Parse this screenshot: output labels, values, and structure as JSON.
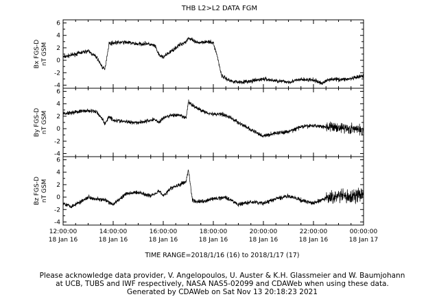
{
  "chart_data": {
    "type": "line",
    "title": "THB  L2>L2 DATA  FGM",
    "time_range_label": "TIME RANGE=2018/1/16 (16) to 2018/1/17 (17)",
    "x_ticks": [
      {
        "time": "12:00:00",
        "date": "18 Jan 16"
      },
      {
        "time": "14:00:00",
        "date": "18 Jan 16"
      },
      {
        "time": "16:00:00",
        "date": "18 Jan 16"
      },
      {
        "time": "18:00:00",
        "date": "18 Jan 16"
      },
      {
        "time": "20:00:00",
        "date": "18 Jan 16"
      },
      {
        "time": "22:00:00",
        "date": "18 Jan 16"
      },
      {
        "time": "00:00:00",
        "date": "18 Jan 17"
      }
    ],
    "xlim": [
      "2018-01-16 12:00",
      "2018-01-17 00:00"
    ],
    "panels": [
      {
        "ylabel": "Bx FGS-D",
        "unit": "nT GSM",
        "ylim": [
          -4.5,
          6.5
        ],
        "y_ticks": [
          "6",
          "4",
          "2",
          "0",
          "-2",
          "-4"
        ],
        "y_tick_values": [
          6,
          4,
          2,
          0,
          -2,
          -4
        ],
        "series": [
          {
            "x": [
              "12:00",
              "12:30",
              "13:00",
              "13:20",
              "13:35",
              "13:40",
              "13:50",
              "14:00",
              "14:30",
              "15:00",
              "15:20",
              "15:40",
              "15:50",
              "16:00",
              "16:20",
              "16:40",
              "16:55",
              "17:00",
              "17:20",
              "17:40",
              "18:00",
              "18:10",
              "18:20",
              "18:40",
              "19:00",
              "19:30",
              "20:00",
              "20:30",
              "21:00",
              "21:30",
              "22:00",
              "22:20",
              "22:40",
              "23:00",
              "23:30",
              "00:00"
            ],
            "y": [
              0.5,
              1.0,
              1.5,
              0.5,
              -1.2,
              -1.5,
              2.7,
              2.8,
              2.9,
              2.6,
              2.7,
              2.3,
              0.8,
              0.5,
              1.5,
              2.5,
              3.0,
              3.6,
              2.8,
              3.0,
              2.8,
              0.5,
              -2.5,
              -3.3,
              -3.5,
              -3.4,
              -3.0,
              -3.3,
              -3.5,
              -3.1,
              -3.2,
              -3.7,
              -3.0,
              -3.1,
              -3.0,
              -2.5
            ]
          }
        ]
      },
      {
        "ylabel": "By FGS-D",
        "unit": "nT GSM",
        "ylim": [
          -4.5,
          6.5
        ],
        "y_ticks": [
          "6",
          "4",
          "2",
          "0",
          "-2",
          "-4"
        ],
        "y_tick_values": [
          6,
          4,
          2,
          0,
          -2,
          -4
        ],
        "series": [
          {
            "x": [
              "12:00",
              "12:30",
              "13:00",
              "13:20",
              "13:35",
              "13:40",
              "13:50",
              "14:00",
              "14:30",
              "15:00",
              "15:20",
              "15:40",
              "15:50",
              "16:00",
              "16:20",
              "16:40",
              "16:55",
              "17:00",
              "17:20",
              "17:40",
              "18:00",
              "18:20",
              "18:40",
              "19:00",
              "19:30",
              "20:00",
              "20:30",
              "21:00",
              "21:30",
              "22:00",
              "22:30",
              "23:00",
              "23:30",
              "00:00"
            ],
            "y": [
              2.4,
              2.7,
              2.9,
              2.7,
              1.5,
              0.7,
              2.0,
              1.4,
              1.1,
              1.0,
              1.2,
              1.5,
              1.0,
              1.7,
              2.2,
              2.1,
              1.7,
              4.3,
              3.3,
              2.7,
              2.3,
              2.4,
              1.8,
              1.0,
              -0.2,
              -1.2,
              -0.7,
              -0.5,
              0.3,
              0.5,
              0.3,
              0.2,
              0.0,
              -0.3
            ]
          }
        ]
      },
      {
        "ylabel": "Bz FGS-D",
        "unit": "nT GSM",
        "ylim": [
          -4.5,
          6.5
        ],
        "y_ticks": [
          "6",
          "4",
          "2",
          "0",
          "-2",
          "-4"
        ],
        "y_tick_values": [
          6,
          4,
          2,
          0,
          -2,
          -4
        ],
        "series": [
          {
            "x": [
              "12:00",
              "12:20",
              "12:40",
              "13:00",
              "13:20",
              "13:40",
              "14:00",
              "14:30",
              "15:00",
              "15:30",
              "15:50",
              "16:00",
              "16:20",
              "16:40",
              "16:55",
              "17:00",
              "17:10",
              "17:20",
              "17:40",
              "18:00",
              "18:30",
              "19:00",
              "19:30",
              "20:00",
              "20:30",
              "21:00",
              "21:30",
              "22:00",
              "22:30",
              "23:00",
              "23:30",
              "00:00"
            ],
            "y": [
              -1.0,
              -1.5,
              -0.8,
              0.0,
              -0.3,
              -0.5,
              -1.2,
              0.5,
              0.8,
              0.2,
              1.0,
              0.2,
              1.5,
              2.0,
              2.5,
              4.5,
              -0.5,
              -0.8,
              -0.6,
              -0.3,
              0.0,
              -1.2,
              -0.8,
              -1.0,
              -0.3,
              0.2,
              -0.5,
              -1.0,
              -0.2,
              0.2,
              0.0,
              0.5
            ]
          }
        ]
      }
    ]
  },
  "footer": {
    "line1": "Please acknowledge data provider, V. Angelopoulos, U. Auster & K.H. Glassmeier and W. Baumjohann",
    "line2": "at UCB, TUBS and IWF respectively, NASA NAS5-02099 and CDAWeb when using these data.",
    "line3": "Generated by CDAWeb on Sat Nov 13 20:18:23 2021"
  }
}
